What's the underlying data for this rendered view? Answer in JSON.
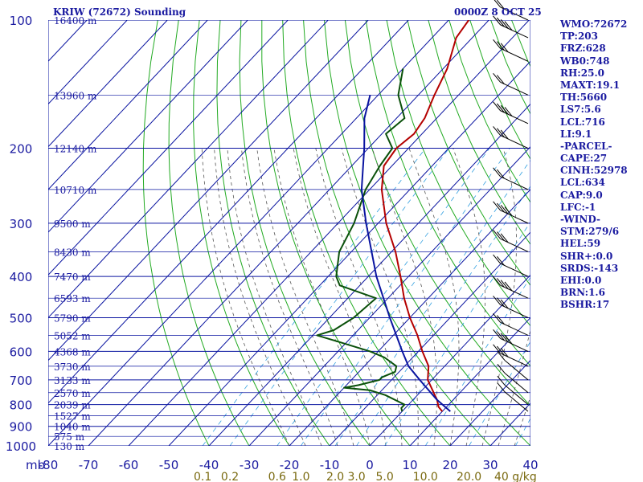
{
  "chart_data": {
    "type": "line",
    "title": "KRIW (72672) Sounding",
    "date_label": "0000Z  8 OCT 25",
    "y_axis": {
      "unit": "mb",
      "scale": "log",
      "range": [
        1000,
        100
      ],
      "pressure_ticks": [
        100,
        200,
        300,
        400,
        500,
        600,
        700,
        800,
        900,
        1000
      ]
    },
    "x_axis": {
      "unit": "C",
      "range": [
        -80,
        40
      ],
      "ticks": [
        -80,
        -70,
        -60,
        -50,
        -40,
        -30,
        -20,
        -10,
        0,
        10,
        20,
        30,
        40
      ]
    },
    "mixing_ratio_labels": [
      "0.1",
      "0.2",
      "0.6",
      "1.0",
      "2.0",
      "3.0",
      "5.0",
      "10.0",
      "20.0",
      "40 g/kg"
    ],
    "height_labels": [
      {
        "p": 100,
        "text": "16400 m"
      },
      {
        "p": 150,
        "text": "13960 m"
      },
      {
        "p": 200,
        "text": "12140 m"
      },
      {
        "p": 250,
        "text": "10710 m"
      },
      {
        "p": 300,
        "text": "9500 m"
      },
      {
        "p": 350,
        "text": "8430 m"
      },
      {
        "p": 400,
        "text": "7470 m"
      },
      {
        "p": 450,
        "text": "6593 m"
      },
      {
        "p": 500,
        "text": "5790 m"
      },
      {
        "p": 550,
        "text": "5052 m"
      },
      {
        "p": 600,
        "text": "4368 m"
      },
      {
        "p": 650,
        "text": "3730 m"
      },
      {
        "p": 700,
        "text": "3133 m"
      },
      {
        "p": 750,
        "text": "2570 m"
      },
      {
        "p": 800,
        "text": "2039 m"
      },
      {
        "p": 850,
        "text": "1527 m"
      },
      {
        "p": 900,
        "text": "1040 m"
      },
      {
        "p": 950,
        "text": "575 m"
      },
      {
        "p": 1000,
        "text": "130 m"
      }
    ],
    "series": [
      {
        "name": "temperature",
        "color": "#b40000",
        "points": [
          [
            830,
            10
          ],
          [
            810,
            8
          ],
          [
            780,
            6
          ],
          [
            700,
            -1
          ],
          [
            650,
            -4
          ],
          [
            600,
            -9
          ],
          [
            550,
            -14
          ],
          [
            500,
            -20
          ],
          [
            450,
            -26
          ],
          [
            400,
            -32
          ],
          [
            350,
            -39
          ],
          [
            300,
            -48
          ],
          [
            250,
            -57
          ],
          [
            220,
            -62
          ],
          [
            200,
            -63
          ],
          [
            185,
            -62
          ],
          [
            170,
            -63
          ],
          [
            150,
            -66
          ],
          [
            130,
            -69
          ],
          [
            110,
            -74
          ],
          [
            100,
            -75
          ]
        ]
      },
      {
        "name": "dewpoint",
        "color": "#0a500a",
        "points": [
          [
            830,
            0
          ],
          [
            815,
            -1
          ],
          [
            800,
            -1
          ],
          [
            760,
            -8
          ],
          [
            740,
            -13
          ],
          [
            730,
            -20
          ],
          [
            720,
            -17
          ],
          [
            700,
            -13
          ],
          [
            690,
            -13
          ],
          [
            670,
            -11
          ],
          [
            650,
            -12
          ],
          [
            620,
            -17
          ],
          [
            600,
            -22
          ],
          [
            570,
            -32
          ],
          [
            550,
            -39
          ],
          [
            535,
            -36
          ],
          [
            500,
            -34
          ],
          [
            450,
            -33
          ],
          [
            420,
            -45
          ],
          [
            400,
            -48
          ],
          [
            350,
            -53
          ],
          [
            300,
            -56
          ],
          [
            250,
            -61
          ],
          [
            220,
            -63
          ],
          [
            200,
            -64
          ],
          [
            185,
            -69
          ],
          [
            170,
            -68
          ],
          [
            150,
            -75
          ],
          [
            130,
            -80
          ]
        ]
      },
      {
        "name": "parcel",
        "color": "#0a14a0",
        "points": [
          [
            830,
            12
          ],
          [
            780,
            6
          ],
          [
            700,
            -3
          ],
          [
            650,
            -9
          ],
          [
            600,
            -14
          ],
          [
            500,
            -25
          ],
          [
            400,
            -38
          ],
          [
            300,
            -53
          ],
          [
            250,
            -62
          ],
          [
            200,
            -71
          ],
          [
            170,
            -78
          ],
          [
            150,
            -82
          ]
        ]
      }
    ],
    "wind_barbs_color": "#000000",
    "wind_levels_mb": [
      830,
      800,
      750,
      700,
      650,
      600,
      550,
      500,
      450,
      400,
      350,
      300,
      250,
      200,
      175,
      150,
      125,
      110,
      100
    ],
    "colors": {
      "isobar": "#0a14a0",
      "isotherm": "#0a14a0",
      "dry_adiabat": "#22aa22",
      "moist_adiabat": "#555555",
      "mixing_ratio": "#33a0e0",
      "axis_text": "#1a1aa0",
      "mixing_label": "#7a6a10"
    }
  },
  "stats": [
    "WMO:72672",
    "TP:203",
    "FRZ:628",
    "WB0:748",
    "RH:25.0",
    "MAXT:19.1",
    "TH:5660",
    "LS7:5.6",
    "LCL:716",
    "LI:9.1",
    "-PARCEL-",
    "CAPE:27",
    "CINH:52978",
    "LCL:634",
    "CAP:9.0",
    "LFC:-1",
    "-WIND-",
    "STM:279/6",
    "HEL:59",
    "SHR+:0.0",
    "SRDS:-143",
    "EHI:0.0",
    "BRN:1.6",
    "BSHR:17"
  ]
}
